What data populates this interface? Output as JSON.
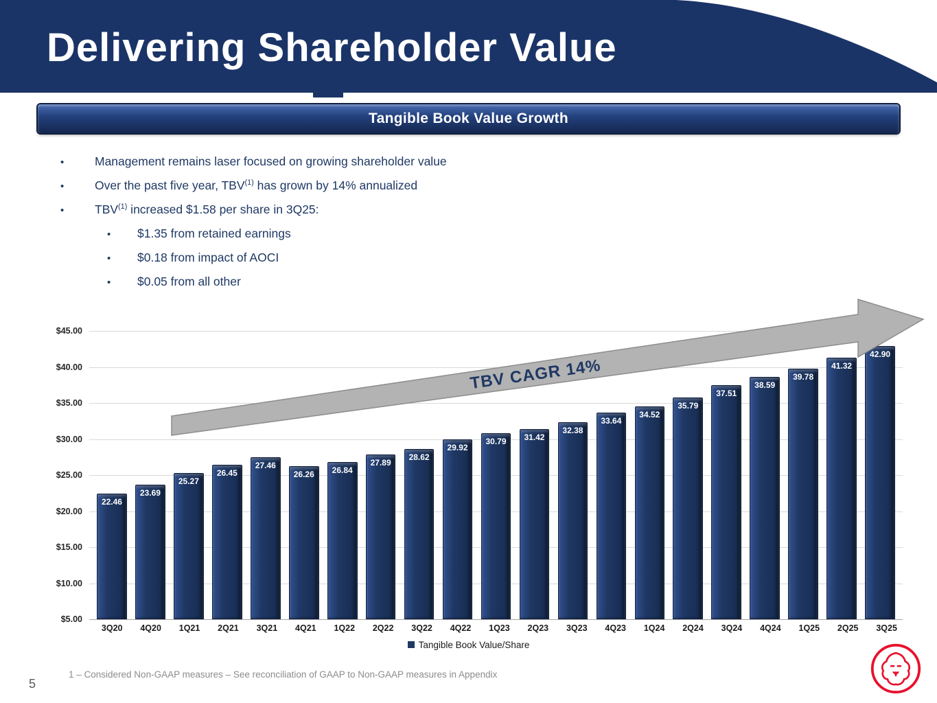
{
  "slide": {
    "title": "Delivering Shareholder Value",
    "banner": "Tangible Book Value Growth",
    "page_number": "5",
    "footnote": "1 – Considered Non-GAAP measures – See reconciliation of GAAP to Non-GAAP measures in Appendix"
  },
  "bullets": [
    {
      "level": 1,
      "pre": "Management remains laser focused on growing shareholder value",
      "sup": "",
      "post": ""
    },
    {
      "level": 1,
      "pre": "Over the past five year, TBV",
      "sup": "(1)",
      "post": " has grown by 14% annualized"
    },
    {
      "level": 1,
      "pre": "TBV",
      "sup": "(1)",
      "post": " increased $1.58 per share in 3Q25:"
    },
    {
      "level": 2,
      "pre": "$1.35 from retained earnings",
      "sup": "",
      "post": ""
    },
    {
      "level": 2,
      "pre": "$0.18 from impact of AOCI",
      "sup": "",
      "post": ""
    },
    {
      "level": 2,
      "pre": "$0.05 from all other",
      "sup": "",
      "post": ""
    }
  ],
  "chart_data": {
    "type": "bar",
    "categories": [
      "3Q20",
      "4Q20",
      "1Q21",
      "2Q21",
      "3Q21",
      "4Q21",
      "1Q22",
      "2Q22",
      "3Q22",
      "4Q22",
      "1Q23",
      "2Q23",
      "3Q23",
      "4Q23",
      "1Q24",
      "2Q24",
      "3Q24",
      "4Q24",
      "1Q25",
      "2Q25",
      "3Q25"
    ],
    "values": [
      22.46,
      23.69,
      25.27,
      26.45,
      27.46,
      26.26,
      26.84,
      27.89,
      28.62,
      29.92,
      30.79,
      31.42,
      32.38,
      33.64,
      34.52,
      35.79,
      37.51,
      38.59,
      39.78,
      41.32,
      42.9
    ],
    "series_name": "Tangible Book Value/Share",
    "legend": "Tangible Book Value/Share",
    "legend_position": "bottom",
    "annotation": "TBV CAGR 14%",
    "annotation_type": "rising-arrow",
    "ylim": [
      5,
      45
    ],
    "ytick_step": 5,
    "ytick_format": "$0.00",
    "grid": true,
    "title": "",
    "xlabel": "",
    "ylabel": ""
  },
  "colors": {
    "header_navy": "#1B3467",
    "bar_fill": "#1F3864",
    "arrow_gray": "#B3B3B3",
    "annotation_text": "#1F3864",
    "logo_red": "#E8112D"
  },
  "icons": {
    "legend_swatch": "filled-square",
    "logo": "lion-crest"
  }
}
